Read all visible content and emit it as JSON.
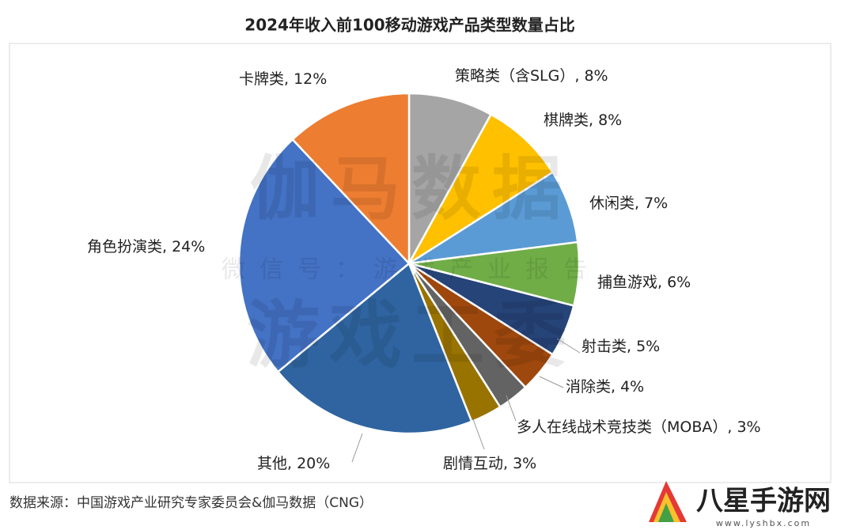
{
  "chart_data": {
    "type": "pie",
    "title": "2024年收入前100移动游戏产品类型数量占比",
    "categories": [
      "策略类（含SLG）",
      "棋牌类",
      "休闲类",
      "捕鱼游戏",
      "射击类",
      "消除类",
      "多人在线战术竞技类（MOBA）",
      "剧情互动",
      "其他",
      "角色扮演类",
      "卡牌类"
    ],
    "values": [
      8,
      8,
      7,
      6,
      5,
      4,
      3,
      3,
      20,
      24,
      12
    ],
    "value_labels": [
      ", 8%",
      ", 8%",
      ", 7%",
      ", 6%",
      ", 5%",
      ", 4%",
      ", 3%",
      ", 3%",
      ", 20%",
      ", 24%",
      ", 12%"
    ],
    "colors": [
      "#a5a5a5",
      "#ffc000",
      "#5b9bd5",
      "#70ad47",
      "#264478",
      "#9e480e",
      "#636363",
      "#997300",
      "#2f64a0",
      "#4472c4",
      "#ed7d31"
    ],
    "source": "数据来源：中国游戏产业研究专家委员会&伽马数据（CNG）"
  },
  "watermark": [
    "伽马数据",
    "微信号：游戏产业报告",
    "游戏工委"
  ],
  "logo": {
    "name": "八星手游网",
    "url": "www.lyshbx.com"
  }
}
